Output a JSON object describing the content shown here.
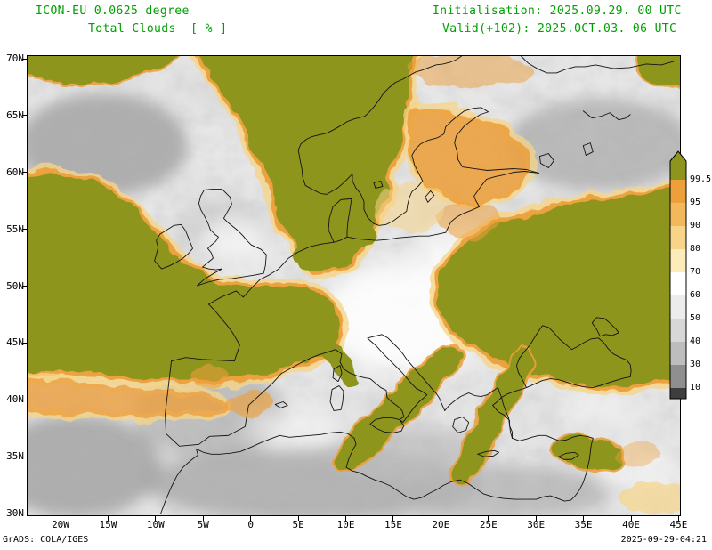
{
  "header": {
    "model": "ICON-EU 0.0625 degree",
    "variable": "Total Clouds  [ % ]",
    "initialisation": "Initialisation: 2025.09.29. 00 UTC",
    "valid": "Valid(+102): 2025.OCT.03. 06 UTC"
  },
  "footer": {
    "credit": "GrADS: COLA/IGES",
    "timestamp": "2025-09-29-04:21"
  },
  "colors": {
    "title_green": "#00a000",
    "frame": "#000000",
    "map_base": "#e6e6e6",
    "olive": "#8e951d",
    "orange": "#ec9f3b",
    "pale_yellow": "#f6d488",
    "cream": "#fbecb9"
  },
  "chart_data": {
    "type": "heatmap",
    "title": "Total Clouds [ % ]",
    "model": "ICON-EU 0.0625 degree",
    "initialisation": "2025.09.29. 00 UTC",
    "valid": "2025.OCT.03. 06 UTC",
    "lead_hours": 102,
    "units": "%",
    "lat_ticks": [
      "70N",
      "65N",
      "60N",
      "55N",
      "50N",
      "45N",
      "40N",
      "35N",
      "30N"
    ],
    "lon_ticks": [
      "20W",
      "15W",
      "10W",
      "5W",
      "0",
      "5E",
      "10E",
      "15E",
      "20E",
      "25E",
      "30E",
      "35E",
      "40E",
      "45E"
    ],
    "lat_range_deg": [
      30,
      70
    ],
    "lon_range_deg": [
      -23.5,
      45.5
    ],
    "grid": false,
    "legend_position": "right",
    "colorbar": {
      "boundary_labels": [
        "99.5",
        "95",
        "90",
        "80",
        "70",
        "60",
        "50",
        "40",
        "30",
        "10"
      ],
      "segment_colors": [
        "#8e951d",
        "#ec9f3b",
        "#f1b95c",
        "#f6d488",
        "#fbecb9",
        "#ffffff",
        "#ececec",
        "#d7d7d7",
        "#bdbdbd",
        "#8f8f8f",
        "#3e3e3e"
      ]
    },
    "overcast_99plus_regions": [
      "NE Atlantic and Norwegian Sea",
      "Scandinavia and North Sea",
      "W France and Bay of Biscay",
      "Ukraine and SW Russia",
      "Italy-Balkans-Aegean band",
      "Tunisia-Sicily band"
    ],
    "high_cloud_90_99_regions": [
      "Finland and Baltic states",
      "Fringe of Atlantic cloud mass",
      "S Sweden",
      "NE edge of east-European mass"
    ],
    "mostly_clear_regions": [
      "Central Europe (Germany/Poland/Alps)",
      "Iberia interior",
      "W Mediterranean",
      "NW Africa coast",
      "E Turkey and Levant",
      "Iceland sector (broken low cloud)"
    ]
  }
}
